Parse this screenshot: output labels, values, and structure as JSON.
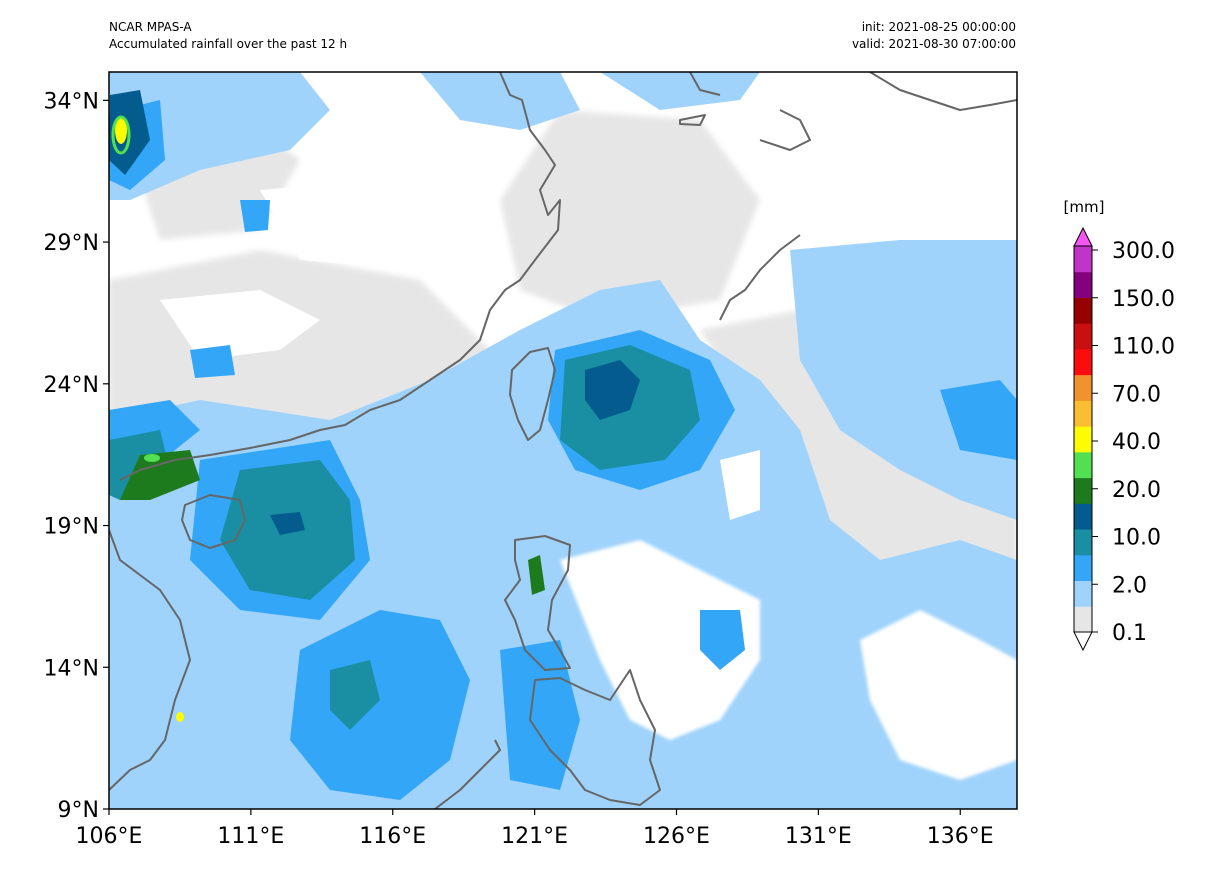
{
  "header": {
    "model": "NCAR MPAS-A",
    "description": "Accumulated rainfall over the past 12 h",
    "init": "init: 2021-08-25 00:00:00",
    "valid": "valid: 2021-08-30 07:00:00"
  },
  "map": {
    "lon_range": [
      106,
      138
    ],
    "lat_range": [
      9,
      35
    ],
    "lat_ticks": [
      "34°N",
      "29°N",
      "24°N",
      "19°N",
      "14°N",
      "9°N"
    ],
    "lon_ticks": [
      "106°E",
      "111°E",
      "116°E",
      "121°E",
      "126°E",
      "131°E",
      "136°E"
    ]
  },
  "colorbar": {
    "unit": "[mm]",
    "labels": [
      "300.0",
      "150.0",
      "110.0",
      "70.0",
      "40.0",
      "20.0",
      "10.0",
      "2.0",
      "0.1"
    ],
    "colors": [
      "#ffffff",
      "#e6e6e6",
      "#9fd3fb",
      "#33a6f7",
      "#1a8fa3",
      "#035c8d",
      "#1d7a1d",
      "#52e052",
      "#fdfd00",
      "#fbbe30",
      "#f2922e",
      "#fb0d0d",
      "#c81010",
      "#960000",
      "#85007f",
      "#c034c6",
      "#f755f2"
    ]
  }
}
